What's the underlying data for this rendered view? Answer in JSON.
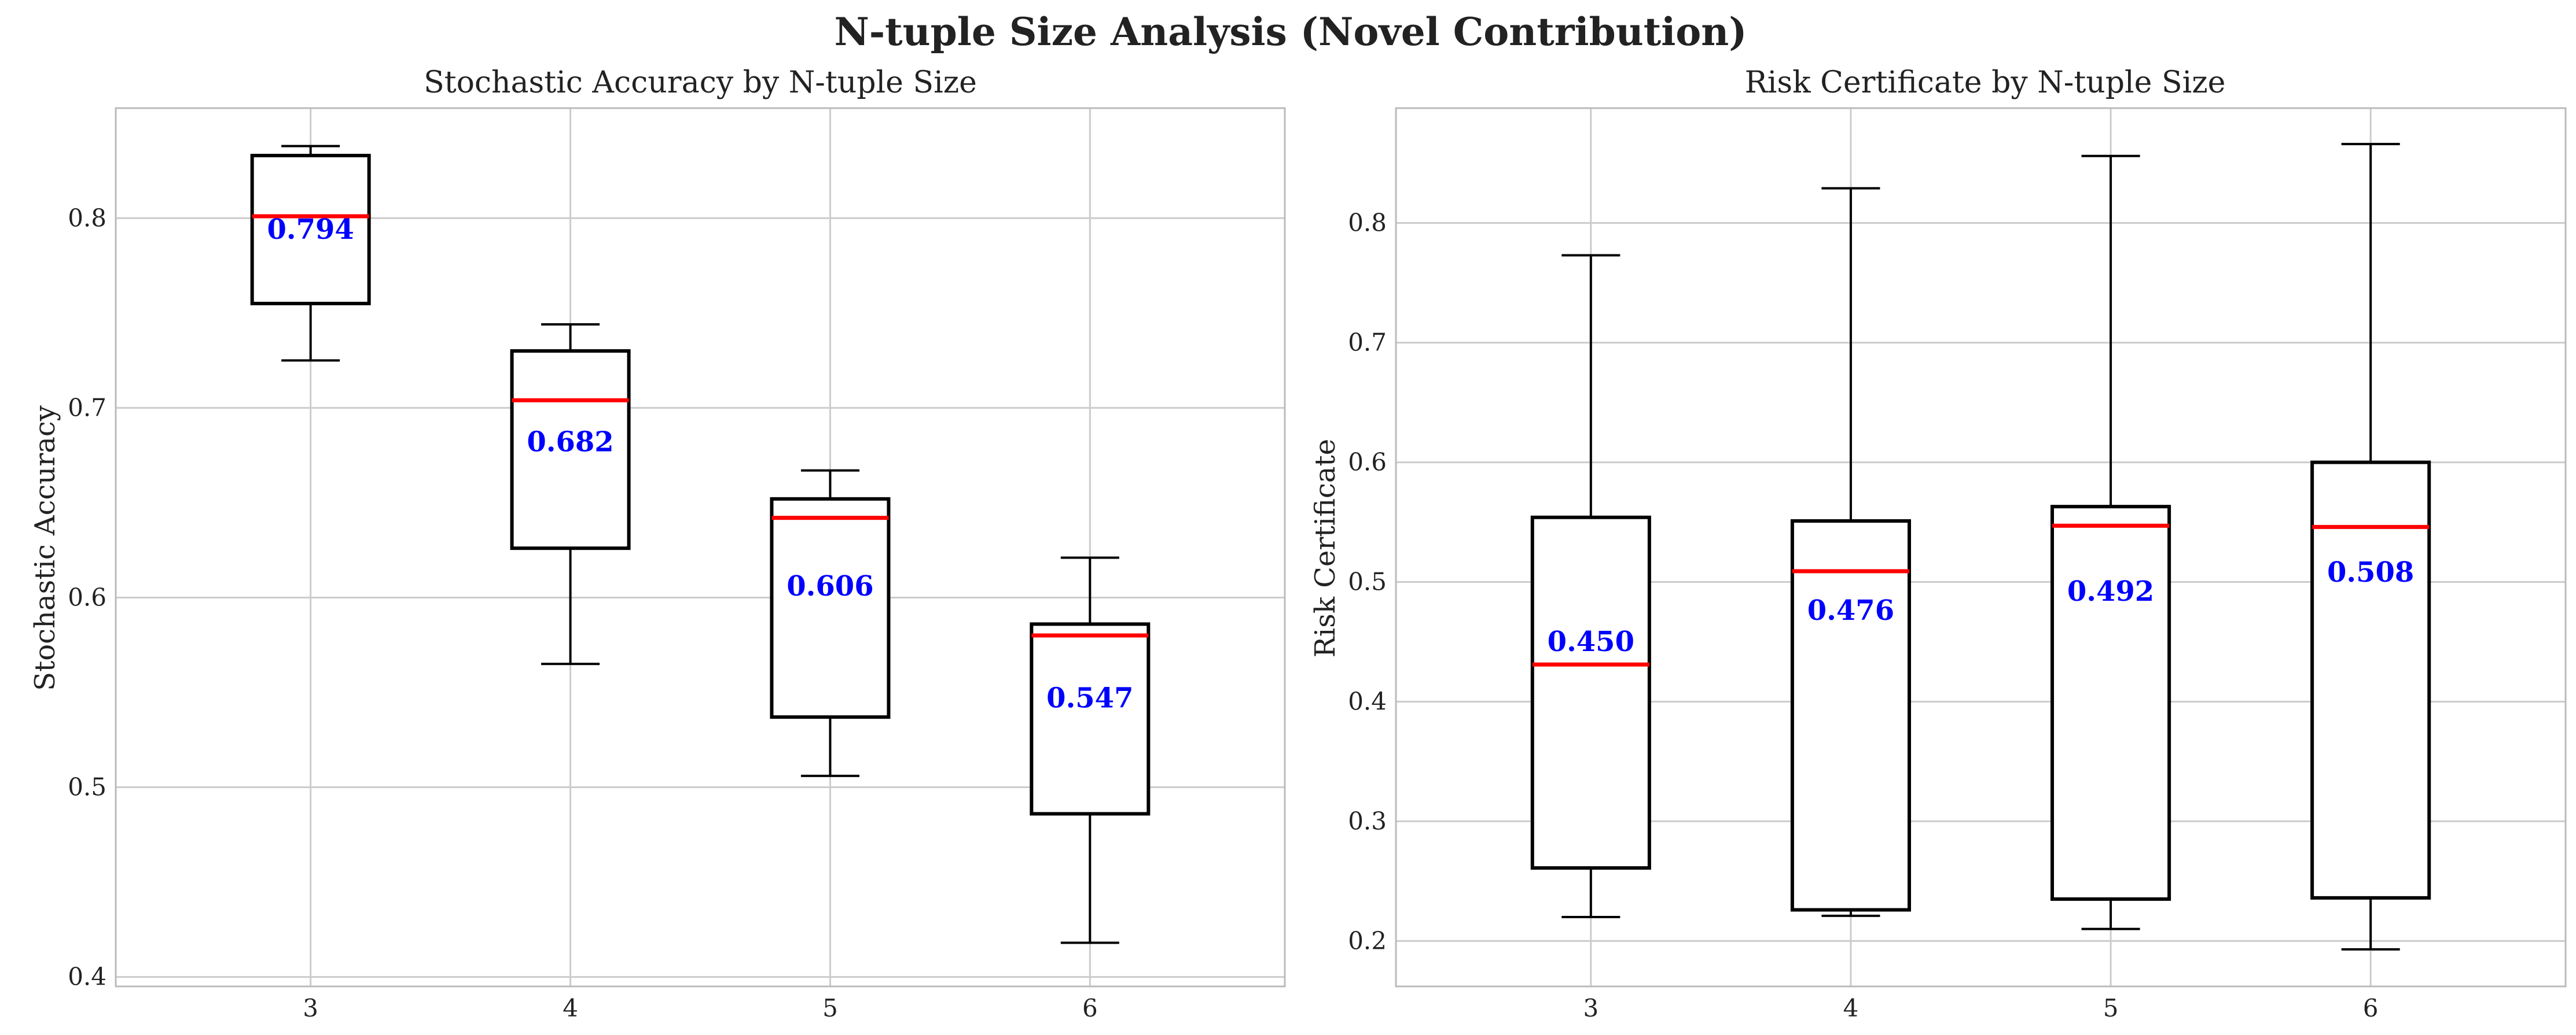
{
  "figure": {
    "title": "N-tuple Size Analysis (Novel Contribution)"
  },
  "chart_data": [
    {
      "type": "box",
      "title": "Stochastic Accuracy by N-tuple Size",
      "xlabel": "",
      "ylabel": "Stochastic Accuracy",
      "categories": [
        "3",
        "4",
        "5",
        "6"
      ],
      "ylim": [
        0.395,
        0.858
      ],
      "yticks": [
        0.4,
        0.5,
        0.6,
        0.7,
        0.8
      ],
      "grid": true,
      "median_color": "#ff0000",
      "mean_label_color": "#0000ff",
      "boxes": [
        {
          "category": "3",
          "whisker_low": 0.725,
          "q1": 0.755,
          "median": 0.801,
          "q3": 0.833,
          "whisker_high": 0.838,
          "mean_label": "0.794"
        },
        {
          "category": "4",
          "whisker_low": 0.565,
          "q1": 0.626,
          "median": 0.704,
          "q3": 0.73,
          "whisker_high": 0.744,
          "mean_label": "0.682"
        },
        {
          "category": "5",
          "whisker_low": 0.506,
          "q1": 0.537,
          "median": 0.642,
          "q3": 0.652,
          "whisker_high": 0.667,
          "mean_label": "0.606"
        },
        {
          "category": "6",
          "whisker_low": 0.418,
          "q1": 0.486,
          "median": 0.58,
          "q3": 0.586,
          "whisker_high": 0.621,
          "mean_label": "0.547"
        }
      ]
    },
    {
      "type": "box",
      "title": "Risk Certificate by N-tuple Size",
      "xlabel": "",
      "ylabel": "Risk Certificate",
      "categories": [
        "3",
        "4",
        "5",
        "6"
      ],
      "ylim": [
        0.162,
        0.896
      ],
      "yticks": [
        0.2,
        0.3,
        0.4,
        0.5,
        0.6,
        0.7,
        0.8
      ],
      "grid": true,
      "median_color": "#ff0000",
      "mean_label_color": "#0000ff",
      "boxes": [
        {
          "category": "3",
          "whisker_low": 0.22,
          "q1": 0.261,
          "median": 0.431,
          "q3": 0.554,
          "whisker_high": 0.773,
          "mean_label": "0.450"
        },
        {
          "category": "4",
          "whisker_low": 0.221,
          "q1": 0.226,
          "median": 0.509,
          "q3": 0.551,
          "whisker_high": 0.829,
          "mean_label": "0.476"
        },
        {
          "category": "5",
          "whisker_low": 0.21,
          "q1": 0.235,
          "median": 0.547,
          "q3": 0.563,
          "whisker_high": 0.856,
          "mean_label": "0.492"
        },
        {
          "category": "6",
          "whisker_low": 0.193,
          "q1": 0.236,
          "median": 0.546,
          "q3": 0.6,
          "whisker_high": 0.866,
          "mean_label": "0.508"
        }
      ]
    }
  ]
}
